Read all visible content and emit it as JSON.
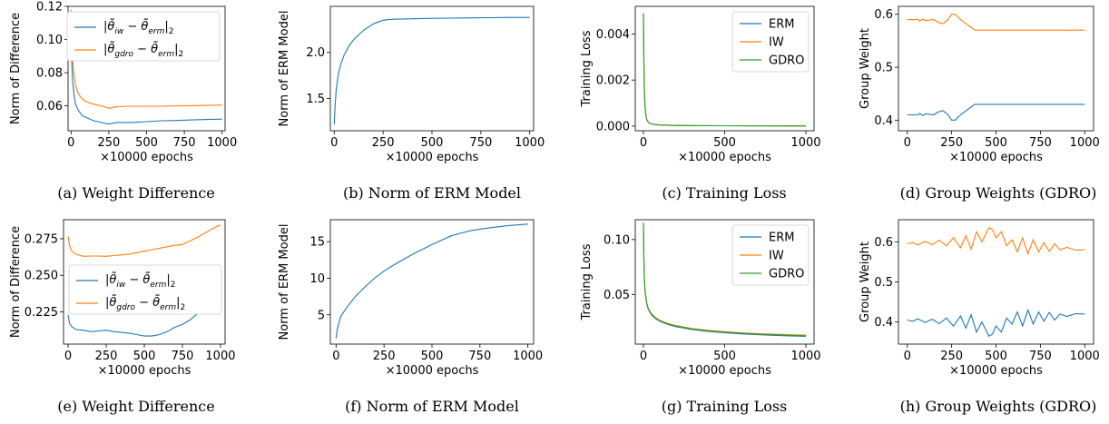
{
  "chart_data": [
    {
      "id": "a",
      "type": "line",
      "caption": "(a) Weight Difference",
      "xlabel": "×10000 epochs",
      "ylabel": "Norm of Difference",
      "xlim": [
        -20,
        1020
      ],
      "ylim": [
        0.045,
        0.12
      ],
      "xticks": [
        0,
        250,
        500,
        750,
        1000
      ],
      "yticks": [
        0.06,
        0.08,
        0.1,
        0.12
      ],
      "legend_position": "upper right",
      "series": [
        {
          "name": "|θ̃_iw − θ̃_erm|₂",
          "color": "#1f77b4",
          "x": [
            0,
            5,
            10,
            20,
            30,
            50,
            75,
            100,
            150,
            200,
            250,
            300,
            400,
            500,
            600,
            700,
            800,
            900,
            1000
          ],
          "y": [
            0.1,
            0.085,
            0.075,
            0.066,
            0.061,
            0.057,
            0.054,
            0.053,
            0.051,
            0.05,
            0.049,
            0.05,
            0.05,
            0.0505,
            0.051,
            0.0512,
            0.0515,
            0.0518,
            0.052
          ]
        },
        {
          "name": "|θ̃_gdro − θ̃_erm|₂",
          "color": "#ff7f0e",
          "x": [
            0,
            5,
            10,
            20,
            30,
            50,
            75,
            100,
            150,
            200,
            250,
            300,
            400,
            500,
            600,
            700,
            800,
            900,
            1000
          ],
          "y": [
            0.118,
            0.1,
            0.088,
            0.078,
            0.072,
            0.067,
            0.064,
            0.0625,
            0.061,
            0.06,
            0.0585,
            0.0595,
            0.0598,
            0.0598,
            0.0598,
            0.06,
            0.0601,
            0.0603,
            0.0605
          ]
        }
      ]
    },
    {
      "id": "b",
      "type": "line",
      "caption": "(b) Norm of ERM Model",
      "xlabel": "×10000 epochs",
      "ylabel": "Norm of ERM Model",
      "xlim": [
        -20,
        1020
      ],
      "ylim": [
        1.15,
        2.5
      ],
      "xticks": [
        0,
        250,
        500,
        750,
        1000
      ],
      "yticks": [
        1.5,
        2.0
      ],
      "series": [
        {
          "name": "",
          "color": "#1f77b4",
          "x": [
            0,
            5,
            10,
            20,
            30,
            50,
            75,
            100,
            150,
            200,
            250,
            300,
            400,
            500,
            600,
            700,
            800,
            900,
            1000
          ],
          "y": [
            1.22,
            1.45,
            1.6,
            1.75,
            1.85,
            1.97,
            2.07,
            2.14,
            2.24,
            2.31,
            2.35,
            2.36,
            2.365,
            2.37,
            2.372,
            2.375,
            2.377,
            2.38,
            2.38
          ]
        }
      ]
    },
    {
      "id": "c",
      "type": "line",
      "caption": "(c) Training Loss",
      "xlabel": "×10000 epochs",
      "ylabel": "Training Loss",
      "xlim": [
        -50,
        1050
      ],
      "ylim": [
        -0.0002,
        0.0052
      ],
      "xticks": [
        0,
        500,
        1000
      ],
      "yticks": [
        0.0,
        0.002,
        0.004
      ],
      "legend_position": "upper right",
      "series": [
        {
          "name": "ERM",
          "color": "#1f77b4",
          "x": [
            0,
            3,
            6,
            10,
            15,
            20,
            30,
            40,
            60,
            100,
            200,
            300,
            500,
            700,
            1000
          ],
          "y": [
            0.0049,
            0.0028,
            0.0016,
            0.0009,
            0.0005,
            0.0003,
            0.00018,
            0.00012,
            8e-05,
            5e-05,
            3e-05,
            2e-05,
            1.5e-05,
            1.2e-05,
            1e-05
          ]
        },
        {
          "name": "IW",
          "color": "#ff7f0e",
          "x": [
            0,
            3,
            6,
            10,
            15,
            20,
            30,
            40,
            60,
            100,
            200,
            300,
            500,
            700,
            1000
          ],
          "y": [
            0.0049,
            0.0028,
            0.0016,
            0.0009,
            0.0005,
            0.0003,
            0.00018,
            0.00012,
            8e-05,
            5e-05,
            3e-05,
            2e-05,
            1.5e-05,
            1.2e-05,
            1e-05
          ]
        },
        {
          "name": "GDRO",
          "color": "#2ca02c",
          "x": [
            0,
            3,
            6,
            10,
            15,
            20,
            30,
            40,
            60,
            100,
            200,
            300,
            500,
            700,
            1000
          ],
          "y": [
            0.0049,
            0.0028,
            0.0016,
            0.0009,
            0.0005,
            0.0003,
            0.00018,
            0.00012,
            8e-05,
            5e-05,
            3e-05,
            2e-05,
            1.5e-05,
            1.2e-05,
            1e-05
          ]
        }
      ]
    },
    {
      "id": "d",
      "type": "line",
      "caption": "(d) Group Weights (GDRO)",
      "xlabel": "×10000 epochs",
      "ylabel": "Group Weight",
      "xlim": [
        -50,
        1050
      ],
      "ylim": [
        0.38,
        0.615
      ],
      "xticks": [
        0,
        250,
        500,
        750,
        1000
      ],
      "yticks": [
        0.4,
        0.5,
        0.6
      ],
      "series": [
        {
          "name": "",
          "color": "#1f77b4",
          "x": [
            0,
            50,
            60,
            70,
            80,
            90,
            100,
            150,
            170,
            200,
            230,
            250,
            260,
            270,
            300,
            340,
            380,
            400,
            500,
            600,
            700,
            800,
            900,
            1000
          ],
          "y": [
            0.41,
            0.41,
            0.41,
            0.413,
            0.41,
            0.409,
            0.412,
            0.41,
            0.415,
            0.418,
            0.41,
            0.4,
            0.4,
            0.4,
            0.41,
            0.42,
            0.43,
            0.43,
            0.43,
            0.43,
            0.43,
            0.43,
            0.43,
            0.43
          ]
        },
        {
          "name": "",
          "color": "#ff7f0e",
          "x": [
            0,
            50,
            60,
            70,
            80,
            90,
            100,
            150,
            170,
            200,
            230,
            250,
            260,
            270,
            300,
            340,
            380,
            400,
            500,
            600,
            700,
            800,
            900,
            1000
          ],
          "y": [
            0.59,
            0.59,
            0.59,
            0.587,
            0.59,
            0.591,
            0.588,
            0.59,
            0.585,
            0.582,
            0.59,
            0.6,
            0.6,
            0.6,
            0.59,
            0.58,
            0.57,
            0.57,
            0.57,
            0.57,
            0.57,
            0.57,
            0.57,
            0.57
          ]
        }
      ]
    },
    {
      "id": "e",
      "type": "line",
      "caption": "(e) Weight Difference",
      "xlabel": "×10000 epochs",
      "ylabel": "Norm of Difference",
      "xlim": [
        -30,
        1030
      ],
      "ylim": [
        0.203,
        0.288
      ],
      "xticks": [
        0,
        250,
        500,
        750,
        1000
      ],
      "yticks": [
        0.225,
        0.25,
        0.275
      ],
      "legend_position": "center left",
      "series": [
        {
          "name": "|θ̃_iw − θ̃_erm|₂",
          "color": "#1f77b4",
          "x": [
            0,
            10,
            25,
            50,
            100,
            150,
            200,
            250,
            300,
            350,
            400,
            450,
            500,
            550,
            600,
            650,
            700,
            750,
            800,
            850,
            900,
            950,
            1000
          ],
          "y": [
            0.223,
            0.217,
            0.215,
            0.213,
            0.2125,
            0.2115,
            0.212,
            0.2125,
            0.2115,
            0.211,
            0.2105,
            0.2095,
            0.2085,
            0.2085,
            0.2095,
            0.2115,
            0.2145,
            0.2165,
            0.2195,
            0.224,
            0.2285,
            0.234,
            0.2395
          ]
        },
        {
          "name": "|θ̃_gdro − θ̃_erm|₂",
          "color": "#ff7f0e",
          "x": [
            0,
            10,
            25,
            50,
            100,
            150,
            200,
            250,
            300,
            350,
            400,
            450,
            500,
            550,
            600,
            650,
            700,
            750,
            800,
            850,
            900,
            950,
            1000
          ],
          "y": [
            0.2765,
            0.27,
            0.2665,
            0.2645,
            0.263,
            0.2632,
            0.2632,
            0.263,
            0.2635,
            0.264,
            0.2645,
            0.2655,
            0.2665,
            0.2675,
            0.2685,
            0.2695,
            0.2705,
            0.271,
            0.2735,
            0.276,
            0.279,
            0.282,
            0.2845
          ]
        }
      ]
    },
    {
      "id": "f",
      "type": "line",
      "caption": "(f) Norm of ERM Model",
      "xlabel": "×10000 epochs",
      "ylabel": "Norm of ERM Model",
      "xlim": [
        -30,
        1030
      ],
      "ylim": [
        1.0,
        18.0
      ],
      "xticks": [
        0,
        250,
        500,
        750,
        1000
      ],
      "yticks": [
        5,
        10,
        15
      ],
      "series": [
        {
          "name": "",
          "color": "#1f77b4",
          "x": [
            0,
            5,
            10,
            25,
            50,
            100,
            150,
            200,
            250,
            300,
            400,
            500,
            600,
            700,
            800,
            900,
            1000
          ],
          "y": [
            1.8,
            2.8,
            3.5,
            4.8,
            5.8,
            7.5,
            8.8,
            10.0,
            11.0,
            11.8,
            13.3,
            14.6,
            15.8,
            16.5,
            16.9,
            17.2,
            17.4
          ]
        }
      ]
    },
    {
      "id": "g",
      "type": "line",
      "caption": "(g) Training Loss",
      "xlabel": "×10000 epochs",
      "ylabel": "Training Loss",
      "xlim": [
        -50,
        1050
      ],
      "ylim": [
        0.005,
        0.118
      ],
      "xticks": [
        0,
        500,
        1000
      ],
      "yticks": [
        0.05,
        0.1
      ],
      "legend_position": "upper right",
      "series": [
        {
          "name": "ERM",
          "color": "#1f77b4",
          "x": [
            0,
            3,
            6,
            10,
            20,
            30,
            50,
            75,
            100,
            150,
            200,
            300,
            400,
            500,
            600,
            700,
            800,
            900,
            1000
          ],
          "y": [
            0.1145,
            0.082,
            0.065,
            0.053,
            0.042,
            0.0365,
            0.0315,
            0.028,
            0.0258,
            0.0228,
            0.0208,
            0.0182,
            0.0165,
            0.0153,
            0.0143,
            0.0136,
            0.013,
            0.0125,
            0.0121
          ]
        },
        {
          "name": "IW",
          "color": "#ff7f0e",
          "x": [
            0,
            3,
            6,
            10,
            20,
            30,
            50,
            75,
            100,
            150,
            200,
            300,
            400,
            500,
            600,
            700,
            800,
            900,
            1000
          ],
          "y": [
            0.1155,
            0.083,
            0.066,
            0.054,
            0.043,
            0.0375,
            0.0325,
            0.029,
            0.0268,
            0.0238,
            0.0218,
            0.0192,
            0.0175,
            0.0163,
            0.0153,
            0.0146,
            0.014,
            0.0135,
            0.0131
          ]
        },
        {
          "name": "GDRO",
          "color": "#2ca02c",
          "x": [
            0,
            3,
            6,
            10,
            20,
            30,
            50,
            75,
            100,
            150,
            200,
            300,
            400,
            500,
            600,
            700,
            800,
            900,
            1000
          ],
          "y": [
            0.115,
            0.0825,
            0.0655,
            0.0535,
            0.0425,
            0.037,
            0.032,
            0.0285,
            0.0263,
            0.0233,
            0.0213,
            0.0187,
            0.017,
            0.0158,
            0.0148,
            0.0141,
            0.0135,
            0.013,
            0.0126
          ]
        }
      ]
    },
    {
      "id": "h",
      "type": "line",
      "caption": "(h) Group Weights (GDRO)",
      "xlabel": "×10000 epochs",
      "ylabel": "Group Weight",
      "xlim": [
        -50,
        1050
      ],
      "ylim": [
        0.345,
        0.655
      ],
      "xticks": [
        0,
        250,
        500,
        750,
        1000
      ],
      "yticks": [
        0.4,
        0.5,
        0.6
      ],
      "series": [
        {
          "name": "",
          "color": "#1f77b4",
          "x": [
            0,
            30,
            60,
            100,
            140,
            180,
            220,
            260,
            300,
            330,
            360,
            390,
            420,
            440,
            460,
            480,
            500,
            530,
            560,
            590,
            620,
            650,
            680,
            710,
            740,
            770,
            800,
            830,
            860,
            900,
            950,
            1000
          ],
          "y": [
            0.405,
            0.402,
            0.408,
            0.399,
            0.407,
            0.396,
            0.41,
            0.39,
            0.415,
            0.385,
            0.418,
            0.375,
            0.4,
            0.383,
            0.365,
            0.37,
            0.39,
            0.375,
            0.41,
            0.395,
            0.425,
            0.39,
            0.43,
            0.395,
            0.425,
            0.402,
            0.424,
            0.405,
            0.42,
            0.414,
            0.421,
            0.42
          ]
        },
        {
          "name": "",
          "color": "#ff7f0e",
          "x": [
            0,
            30,
            60,
            100,
            140,
            180,
            220,
            260,
            300,
            330,
            360,
            390,
            420,
            440,
            460,
            480,
            500,
            530,
            560,
            590,
            620,
            650,
            680,
            710,
            740,
            770,
            800,
            830,
            860,
            900,
            950,
            1000
          ],
          "y": [
            0.595,
            0.598,
            0.592,
            0.601,
            0.593,
            0.604,
            0.59,
            0.61,
            0.585,
            0.615,
            0.582,
            0.625,
            0.6,
            0.617,
            0.635,
            0.63,
            0.61,
            0.625,
            0.59,
            0.605,
            0.575,
            0.61,
            0.57,
            0.605,
            0.575,
            0.598,
            0.576,
            0.595,
            0.58,
            0.586,
            0.579,
            0.58
          ]
        }
      ]
    }
  ]
}
